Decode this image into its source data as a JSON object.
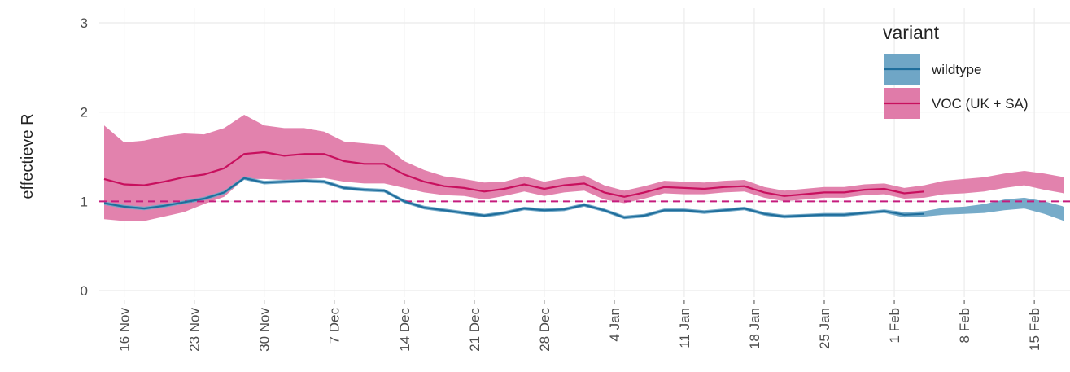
{
  "chart_data": {
    "type": "line",
    "y_label": "effectieve R",
    "legend_title": "variant",
    "legend_position": "top-right",
    "grid": true,
    "ylim": [
      0,
      3
    ],
    "yticks": [
      0,
      1,
      2,
      3
    ],
    "reference_line": {
      "value": 1,
      "color": "#c51b7d"
    },
    "x": [
      "14 Nov",
      "16 Nov",
      "18 Nov",
      "20 Nov",
      "22 Nov",
      "24 Nov",
      "26 Nov",
      "28 Nov",
      "30 Nov",
      "2 Dec",
      "4 Dec",
      "6 Dec",
      "8 Dec",
      "10 Dec",
      "12 Dec",
      "14 Dec",
      "16 Dec",
      "18 Dec",
      "20 Dec",
      "22 Dec",
      "24 Dec",
      "26 Dec",
      "28 Dec",
      "30 Dec",
      "1 Jan",
      "3 Jan",
      "5 Jan",
      "7 Jan",
      "9 Jan",
      "11 Jan",
      "13 Jan",
      "15 Jan",
      "17 Jan",
      "19 Jan",
      "21 Jan",
      "23 Jan",
      "25 Jan",
      "27 Jan",
      "29 Jan",
      "31 Jan",
      "2 Feb",
      "4 Feb",
      "6 Feb",
      "8 Feb",
      "10 Feb",
      "12 Feb",
      "14 Feb",
      "16 Feb",
      "18 Feb"
    ],
    "xticks": [
      "16 Nov",
      "23 Nov",
      "30 Nov",
      "7 Dec",
      "14 Dec",
      "21 Dec",
      "28 Dec",
      "4 Jan",
      "11 Jan",
      "18 Jan",
      "25 Jan",
      "1 Feb",
      "8 Feb",
      "15 Feb"
    ],
    "series": [
      {
        "name": "wildtype",
        "color": "#1f6e9c",
        "band_color": "#6fa6c6",
        "values": [
          0.98,
          0.94,
          0.92,
          0.95,
          0.99,
          1.03,
          1.1,
          1.26,
          1.21,
          1.22,
          1.23,
          1.22,
          1.15,
          1.13,
          1.12,
          1.0,
          0.93,
          0.9,
          0.87,
          0.84,
          0.87,
          0.92,
          0.9,
          0.91,
          0.96,
          0.9,
          0.82,
          0.84,
          0.9,
          0.9,
          0.88,
          0.9,
          0.92,
          0.86,
          0.83,
          0.84,
          0.85,
          0.85,
          0.87,
          0.89,
          0.85,
          0.86,
          null,
          null,
          null,
          null,
          null,
          null,
          null
        ],
        "lower": [
          0.96,
          0.92,
          0.9,
          0.93,
          0.97,
          1.01,
          1.08,
          1.24,
          1.19,
          1.2,
          1.21,
          1.2,
          1.13,
          1.11,
          1.1,
          0.98,
          0.91,
          0.88,
          0.85,
          0.82,
          0.85,
          0.9,
          0.88,
          0.89,
          0.94,
          0.88,
          0.8,
          0.82,
          0.88,
          0.88,
          0.86,
          0.88,
          0.9,
          0.84,
          0.81,
          0.82,
          0.83,
          0.83,
          0.85,
          0.87,
          0.82,
          0.83,
          0.85,
          0.86,
          0.87,
          0.9,
          0.92,
          0.86,
          0.78
        ],
        "upper": [
          1.0,
          0.96,
          0.94,
          0.97,
          1.01,
          1.05,
          1.12,
          1.28,
          1.23,
          1.24,
          1.25,
          1.24,
          1.17,
          1.15,
          1.14,
          1.02,
          0.95,
          0.92,
          0.89,
          0.86,
          0.89,
          0.94,
          0.92,
          0.93,
          0.98,
          0.92,
          0.84,
          0.86,
          0.92,
          0.92,
          0.9,
          0.92,
          0.94,
          0.88,
          0.85,
          0.86,
          0.87,
          0.87,
          0.89,
          0.91,
          0.88,
          0.89,
          0.93,
          0.94,
          0.97,
          1.02,
          1.04,
          1.0,
          0.94
        ]
      },
      {
        "name": "VOC (UK + SA)",
        "color": "#c8105e",
        "band_color": "#e07ba9",
        "values": [
          1.25,
          1.19,
          1.18,
          1.22,
          1.27,
          1.3,
          1.37,
          1.53,
          1.55,
          1.51,
          1.53,
          1.53,
          1.45,
          1.42,
          1.42,
          1.3,
          1.22,
          1.17,
          1.15,
          1.11,
          1.14,
          1.19,
          1.14,
          1.18,
          1.2,
          1.1,
          1.05,
          1.1,
          1.16,
          1.15,
          1.14,
          1.16,
          1.17,
          1.1,
          1.06,
          1.08,
          1.1,
          1.1,
          1.13,
          1.14,
          1.09,
          1.11,
          null,
          null,
          null,
          null,
          null,
          null,
          null
        ],
        "lower": [
          0.8,
          0.78,
          0.78,
          0.83,
          0.88,
          0.97,
          1.05,
          1.25,
          1.25,
          1.24,
          1.25,
          1.26,
          1.22,
          1.2,
          1.2,
          1.15,
          1.1,
          1.07,
          1.06,
          1.02,
          1.06,
          1.11,
          1.06,
          1.1,
          1.12,
          1.02,
          0.98,
          1.03,
          1.09,
          1.08,
          1.08,
          1.1,
          1.11,
          1.04,
          1.0,
          1.02,
          1.04,
          1.04,
          1.07,
          1.08,
          1.03,
          1.04,
          1.08,
          1.09,
          1.11,
          1.15,
          1.18,
          1.13,
          1.09
        ],
        "upper": [
          1.85,
          1.66,
          1.68,
          1.73,
          1.76,
          1.75,
          1.82,
          1.97,
          1.85,
          1.82,
          1.82,
          1.78,
          1.67,
          1.65,
          1.63,
          1.45,
          1.35,
          1.28,
          1.25,
          1.21,
          1.22,
          1.28,
          1.22,
          1.26,
          1.29,
          1.18,
          1.12,
          1.17,
          1.23,
          1.22,
          1.21,
          1.23,
          1.24,
          1.16,
          1.12,
          1.14,
          1.16,
          1.16,
          1.19,
          1.2,
          1.15,
          1.18,
          1.23,
          1.25,
          1.27,
          1.31,
          1.34,
          1.31,
          1.27
        ]
      }
    ]
  }
}
